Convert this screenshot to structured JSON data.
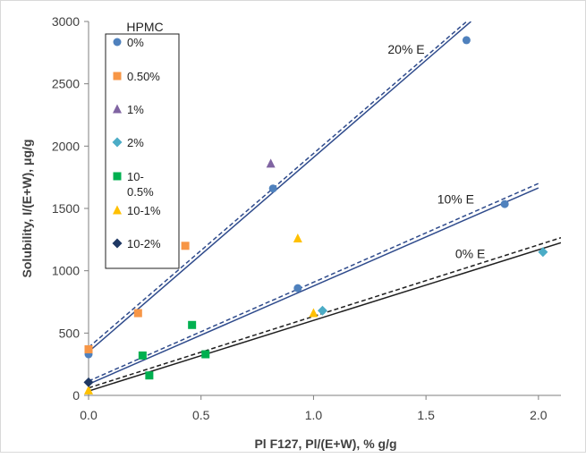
{
  "chart_data": {
    "type": "scatter",
    "xlabel": "Pl F127, Pl/(E+W), % g/g",
    "ylabel": "Solubility, I/(E+W), μg/g",
    "xlim": [
      0.0,
      2.1
    ],
    "ylim": [
      0,
      3000
    ],
    "x_ticks": [
      "0.0",
      "0.5",
      "1.0",
      "1.5",
      "2.0"
    ],
    "y_ticks": [
      "0",
      "500",
      "1000",
      "1500",
      "2000",
      "2500",
      "3000"
    ],
    "grid": false,
    "legend_title": "HPMC",
    "legend_position": "top-left",
    "series": [
      {
        "name": "0%",
        "marker": "circle",
        "color": "#4f81bd",
        "points": [
          [
            0.0,
            330
          ],
          [
            0.82,
            1660
          ],
          [
            0.93,
            860
          ],
          [
            1.68,
            2850
          ],
          [
            1.85,
            1535
          ]
        ]
      },
      {
        "name": "0.50%",
        "marker": "square",
        "color": "#f79646",
        "points": [
          [
            0.0,
            370
          ],
          [
            0.22,
            660
          ],
          [
            0.43,
            1200
          ]
        ]
      },
      {
        "name": "1%",
        "marker": "triangle",
        "color": "#8064a2",
        "points": [
          [
            0.81,
            1860
          ]
        ]
      },
      {
        "name": "2%",
        "marker": "diamond",
        "color": "#4bacc6",
        "points": [
          [
            1.04,
            680
          ],
          [
            2.02,
            1150
          ]
        ]
      },
      {
        "name": "10-\n0.5%",
        "marker": "square",
        "color": "#00b050",
        "points": [
          [
            0.24,
            320
          ],
          [
            0.27,
            160
          ],
          [
            0.46,
            565
          ],
          [
            0.52,
            330
          ]
        ]
      },
      {
        "name": "10-1%",
        "marker": "triangle",
        "color": "#ffc000",
        "points": [
          [
            0.0,
            40
          ],
          [
            0.93,
            1260
          ],
          [
            1.0,
            660
          ]
        ]
      },
      {
        "name": "10-2%",
        "marker": "diamond",
        "color": "#1f3864",
        "points": [
          [
            0.0,
            105
          ]
        ]
      }
    ],
    "fit_lines": [
      {
        "label": "20% E",
        "style": "solid",
        "color": "#2f4b8c",
        "x0": 0.0,
        "y0": 350,
        "x1": 1.7,
        "y1": 3000
      },
      {
        "label": "",
        "style": "dashed",
        "color": "#2f4b8c",
        "x0": 0.0,
        "y0": 385,
        "x1": 1.7,
        "y1": 3030
      },
      {
        "label": "10% E",
        "style": "solid",
        "color": "#2f4b8c",
        "x0": 0.0,
        "y0": 90,
        "x1": 2.0,
        "y1": 1665
      },
      {
        "label": "",
        "style": "dashed",
        "color": "#2f4b8c",
        "x0": 0.0,
        "y0": 115,
        "x1": 2.0,
        "y1": 1700
      },
      {
        "label": "0% E",
        "style": "solid",
        "color": "#1f1f1f",
        "x0": 0.0,
        "y0": 35,
        "x1": 2.1,
        "y1": 1225
      },
      {
        "label": "",
        "style": "dashed",
        "color": "#1f1f1f",
        "x0": 0.0,
        "y0": 60,
        "x1": 2.1,
        "y1": 1265
      }
    ],
    "annotations": [
      {
        "text": "20% E",
        "x": 1.33,
        "y": 2740
      },
      {
        "text": "10% E",
        "x": 1.55,
        "y": 1540
      },
      {
        "text": "0% E",
        "x": 1.63,
        "y": 1100
      }
    ]
  }
}
